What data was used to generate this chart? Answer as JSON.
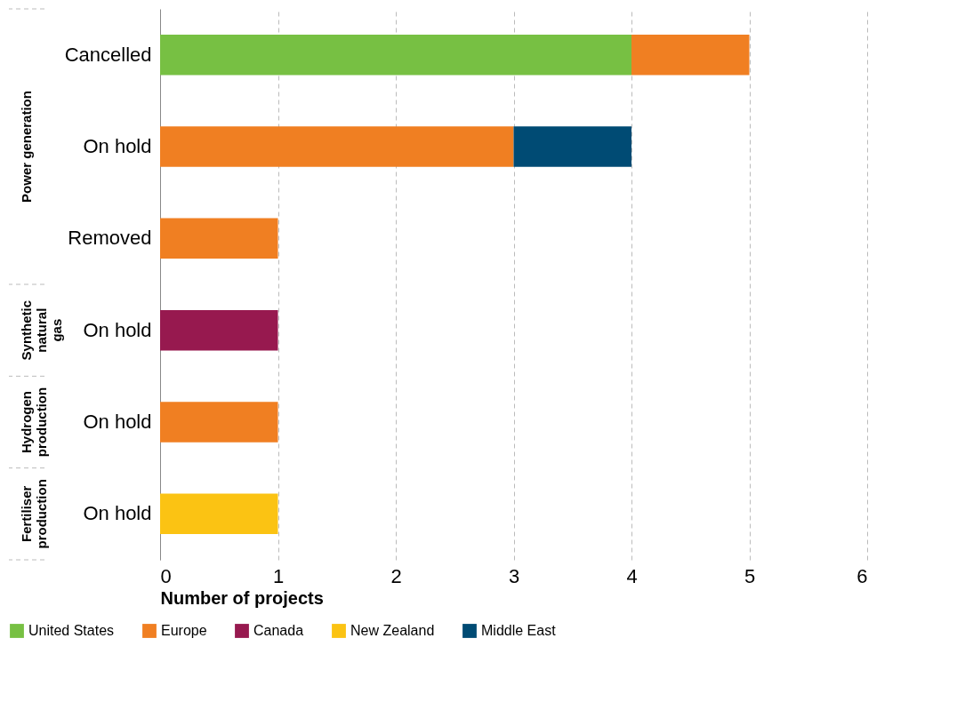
{
  "chart_data": {
    "type": "bar",
    "orientation": "horizontal",
    "stacked": true,
    "categories": [
      "Cancelled",
      "On hold",
      "Removed",
      "On hold",
      "On hold",
      "On hold"
    ],
    "series": [
      {
        "name": "United States",
        "color": "#77c043",
        "values": [
          4,
          null,
          null,
          null,
          null,
          null
        ]
      },
      {
        "name": "Europe",
        "color": "#f07f22",
        "values": [
          1,
          3,
          1,
          null,
          1,
          null
        ]
      },
      {
        "name": "Canada",
        "color": "#97194f",
        "values": [
          null,
          null,
          null,
          1,
          null,
          null
        ]
      },
      {
        "name": "New Zealand",
        "color": "#fbc313",
        "values": [
          null,
          null,
          null,
          null,
          null,
          1
        ]
      },
      {
        "name": "Middle East",
        "color": "#004b74",
        "values": [
          null,
          1,
          null,
          null,
          null,
          null
        ]
      }
    ],
    "xlabel": "Number of projects",
    "xlim": [
      0,
      6
    ],
    "xticks": [
      0,
      1,
      2,
      3,
      4,
      5,
      6
    ],
    "grid": "x",
    "legend": "bottom",
    "annotations": [
      "Power generation",
      "Synthetic natural gas",
      "Hydrogen production",
      "Fertiliser production"
    ]
  }
}
